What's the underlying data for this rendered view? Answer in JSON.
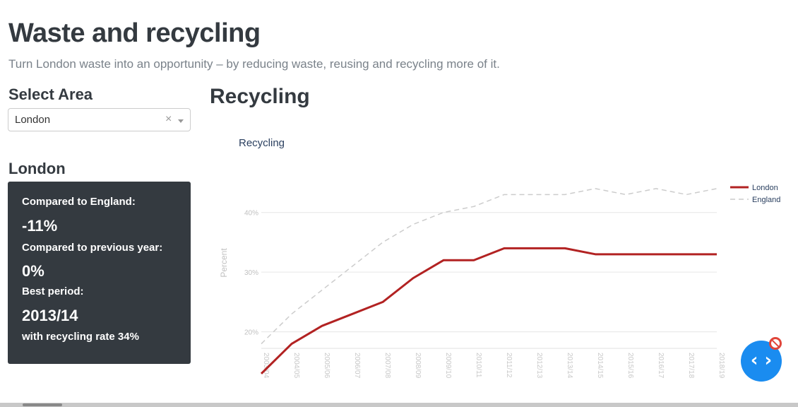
{
  "header": {
    "title": "Waste and recycling",
    "subtitle": "Turn London waste into an opportunity – by reducing waste, reusing and recycling more of it."
  },
  "sidebar": {
    "select_label": "Select Area",
    "selected_area": "London",
    "clear_glyph": "×",
    "area_heading": "London",
    "stats": {
      "compared_england_label": "Compared to England:",
      "compared_england_value": "-11%",
      "compared_prev_label": "Compared to previous year:",
      "compared_prev_value": "0%",
      "best_period_label": "Best period:",
      "best_period_value": "2013/14",
      "best_rate_text": "with recycling rate 34%"
    }
  },
  "main": {
    "section_title": "Recycling"
  },
  "colors": {
    "london": "#b22222",
    "england": "#cccccc",
    "card_bg": "#343a40",
    "fab": "#1a8cf0"
  },
  "icons": {
    "fab": "code-brackets-icon",
    "badge": "blocked-icon"
  },
  "chart_data": {
    "type": "line",
    "title": "Recycling",
    "ylabel": "Percent",
    "xlabel": "",
    "ylim": [
      17,
      46
    ],
    "yticks": [
      20,
      30,
      40
    ],
    "ytick_labels": [
      "20%",
      "30%",
      "40%"
    ],
    "grid": true,
    "legend_position": "top-right",
    "categories": [
      "2003/04",
      "2004/05",
      "2005/06",
      "2006/07",
      "2007/08",
      "2008/09",
      "2009/10",
      "2010/11",
      "2011/12",
      "2012/13",
      "2013/14",
      "2014/15",
      "2015/16",
      "2016/17",
      "2017/18",
      "2018/19"
    ],
    "series": [
      {
        "name": "London",
        "style": "solid",
        "color": "#b22222",
        "values": [
          13,
          18,
          21,
          23,
          25,
          29,
          32,
          32,
          34,
          34,
          34,
          33,
          33,
          33,
          33,
          33
        ]
      },
      {
        "name": "England",
        "style": "dashed",
        "color": "#cccccc",
        "values": [
          18,
          23,
          27,
          31,
          35,
          38,
          40,
          41,
          43,
          43,
          43,
          44,
          43,
          44,
          43,
          44
        ]
      }
    ]
  }
}
